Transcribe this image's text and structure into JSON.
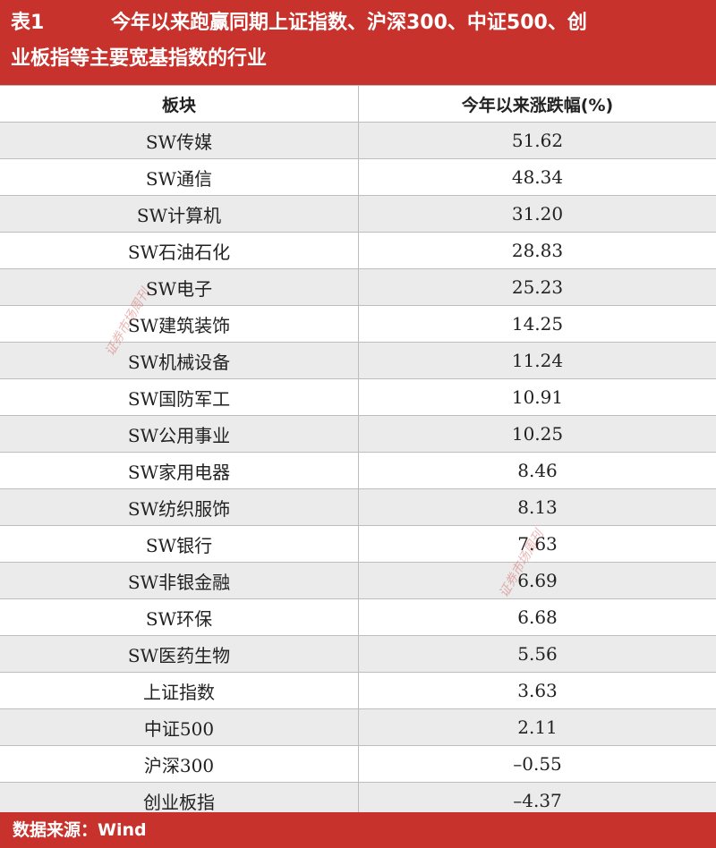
{
  "header": {
    "label": "表1",
    "line1": "今年以来跑赢同期上证指数、沪深300、中证500、创",
    "line2": "业板指等主要宽基指数的行业"
  },
  "table": {
    "columns": [
      "板块",
      "今年以来涨跌幅(%)"
    ],
    "rows": [
      {
        "name": "SW传媒",
        "value": "51.62"
      },
      {
        "name": "SW通信",
        "value": "48.34"
      },
      {
        "name": "SW计算机",
        "value": "31.20"
      },
      {
        "name": "SW石油石化",
        "value": "28.83"
      },
      {
        "name": "SW电子",
        "value": "25.23"
      },
      {
        "name": "SW建筑装饰",
        "value": "14.25"
      },
      {
        "name": "SW机械设备",
        "value": "11.24"
      },
      {
        "name": "SW国防军工",
        "value": "10.91"
      },
      {
        "name": "SW公用事业",
        "value": "10.25"
      },
      {
        "name": "SW家用电器",
        "value": "8.46"
      },
      {
        "name": "SW纺织服饰",
        "value": "8.13"
      },
      {
        "name": "SW银行",
        "value": "7.63"
      },
      {
        "name": "SW非银金融",
        "value": "6.69"
      },
      {
        "name": "SW环保",
        "value": "6.68"
      },
      {
        "name": "SW医药生物",
        "value": "5.56"
      },
      {
        "name": "上证指数",
        "value": "3.63"
      },
      {
        "name": "中证500",
        "value": "2.11"
      },
      {
        "name": "沪深300",
        "value": "–0.55"
      },
      {
        "name": "创业板指",
        "value": "–4.37"
      }
    ]
  },
  "footer": {
    "source": "数据来源：Wind"
  },
  "watermark": {
    "text": "证券市场周刊"
  }
}
